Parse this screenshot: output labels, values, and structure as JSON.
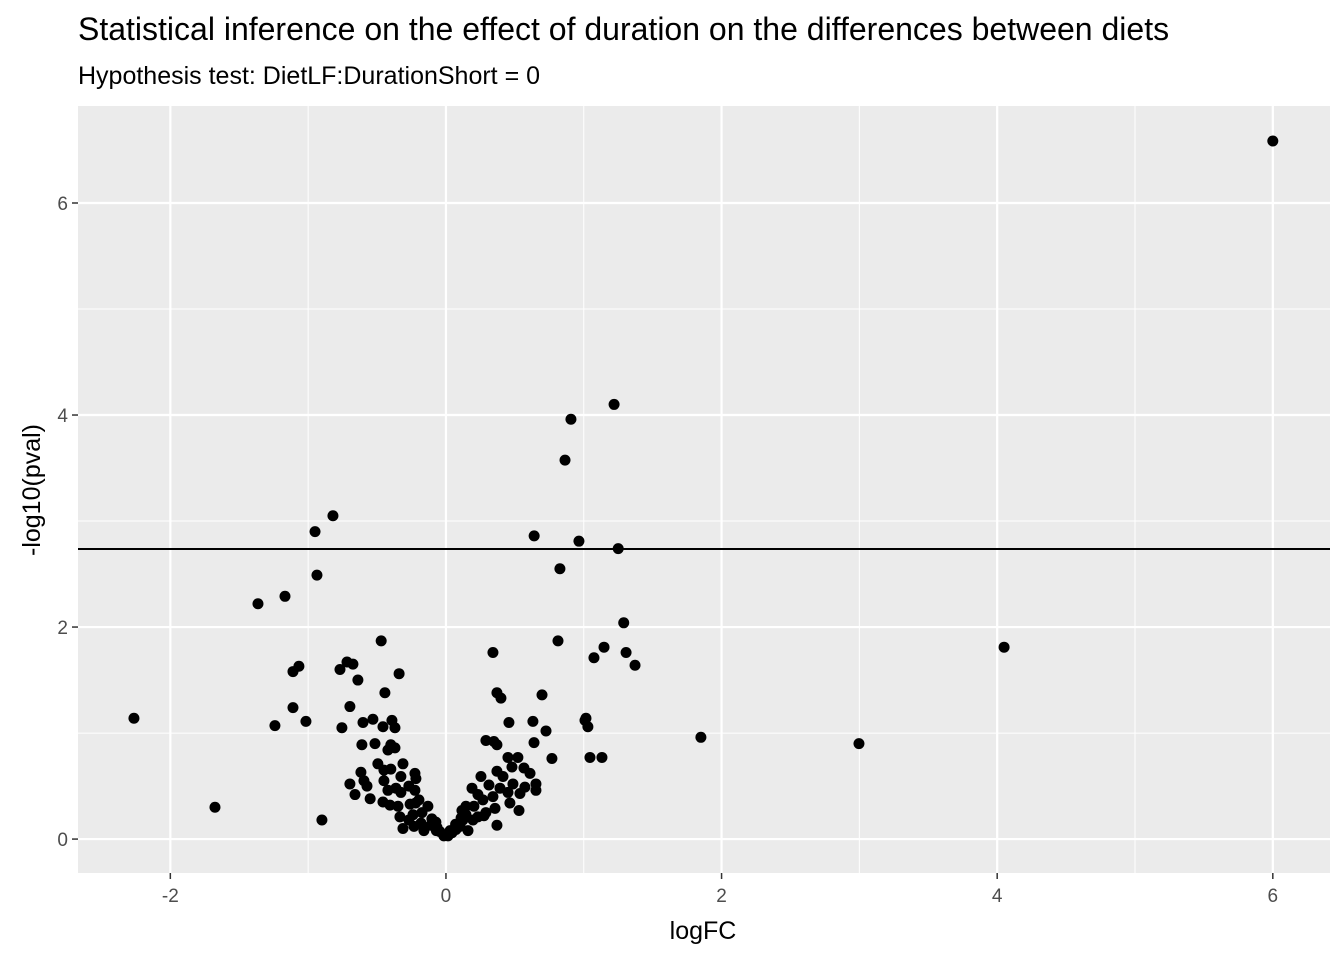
{
  "chart_data": {
    "type": "scatter",
    "title": "Statistical inference on the effect of duration on the differences between diets",
    "subtitle": "Hypothesis test: DietLF:DurationShort = 0",
    "x_label": "logFC",
    "y_label": "-log10(pval)",
    "color": "#000000",
    "hline": 2.736,
    "xlim": [
      -2.67,
      6.415
    ],
    "ylim": [
      -0.32,
      6.915
    ],
    "xticks": [
      -2,
      0,
      2,
      4,
      6
    ],
    "yticks": [
      0,
      2,
      4,
      6
    ],
    "grid": true,
    "x": [
      6.0,
      1.22,
      0.907,
      0.864,
      -0.82,
      -0.95,
      0.64,
      0.965,
      1.25,
      0.827,
      -0.936,
      -1.168,
      -1.364,
      1.29,
      4.05,
      0.813,
      -0.47,
      1.147,
      1.307,
      0.341,
      1.074,
      1.372,
      -0.718,
      -0.675,
      -1.067,
      -0.769,
      -1.11,
      -0.34,
      -0.639,
      -0.443,
      0.37,
      0.697,
      0.399,
      -1.11,
      -0.697,
      -2.264,
      -1.016,
      -1.241,
      1.009,
      1.016,
      1.03,
      0.457,
      0.631,
      -0.53,
      -0.602,
      -0.392,
      -0.457,
      -0.37,
      -0.755,
      0.726,
      0.29,
      0.348,
      1.85,
      2.997,
      -0.61,
      -0.515,
      -0.4,
      0.37,
      0.639,
      -0.421,
      -0.37,
      0.45,
      0.522,
      0.769,
      1.045,
      1.132,
      -0.312,
      -0.494,
      -0.45,
      -0.4,
      -0.617,
      0.479,
      0.566,
      0.37,
      -0.225,
      -0.327,
      0.254,
      0.61,
      0.414,
      -0.218,
      -0.45,
      -0.595,
      -0.697,
      -0.573,
      0.312,
      0.653,
      0.486,
      0.573,
      0.653,
      0.189,
      0.392,
      -0.269,
      -0.363,
      -0.421,
      -0.327,
      -0.225,
      -0.66,
      0.537,
      0.45,
      0.232,
      0.341,
      -0.55,
      -0.457,
      -0.406,
      -0.348,
      -0.26,
      -0.196,
      0.464,
      0.53,
      0.356,
      0.268,
      0.203,
      0.145,
      0.116,
      0.29,
      -1.676,
      -0.9,
      -0.334,
      -0.269,
      -0.239,
      -0.174,
      -0.131,
      -0.181,
      -0.109,
      -0.065,
      -0.312,
      -0.232,
      -0.16,
      -0.073,
      -0.102,
      -0.044,
      -0.015,
      0.015,
      0.044,
      0.073,
      0.102,
      0.123,
      0.145,
      0.16,
      0.196,
      0.232,
      0.276,
      0.37,
      0.03,
      -0.07,
      0.07,
      0.11,
      -0.22
    ],
    "values": [
      6.585,
      4.1,
      3.96,
      3.575,
      3.05,
      2.9,
      2.86,
      2.81,
      2.74,
      2.55,
      2.49,
      2.29,
      2.22,
      2.04,
      1.81,
      1.87,
      1.87,
      1.81,
      1.76,
      1.76,
      1.71,
      1.64,
      1.67,
      1.65,
      1.63,
      1.6,
      1.58,
      1.56,
      1.5,
      1.38,
      1.38,
      1.36,
      1.33,
      1.24,
      1.25,
      1.14,
      1.11,
      1.07,
      1.12,
      1.14,
      1.06,
      1.1,
      1.11,
      1.13,
      1.1,
      1.12,
      1.06,
      1.05,
      1.05,
      1.02,
      0.93,
      0.92,
      0.96,
      0.9,
      0.89,
      0.9,
      0.89,
      0.89,
      0.91,
      0.84,
      0.86,
      0.77,
      0.77,
      0.76,
      0.77,
      0.77,
      0.71,
      0.71,
      0.65,
      0.66,
      0.63,
      0.68,
      0.67,
      0.64,
      0.62,
      0.59,
      0.59,
      0.62,
      0.59,
      0.57,
      0.55,
      0.55,
      0.52,
      0.5,
      0.51,
      0.52,
      0.52,
      0.49,
      0.46,
      0.48,
      0.48,
      0.5,
      0.48,
      0.46,
      0.44,
      0.46,
      0.42,
      0.43,
      0.44,
      0.42,
      0.4,
      0.38,
      0.35,
      0.32,
      0.31,
      0.33,
      0.37,
      0.34,
      0.27,
      0.29,
      0.37,
      0.31,
      0.31,
      0.27,
      0.25,
      0.3,
      0.18,
      0.21,
      0.18,
      0.23,
      0.25,
      0.31,
      0.15,
      0.13,
      0.11,
      0.1,
      0.12,
      0.08,
      0.16,
      0.19,
      0.07,
      0.03,
      0.03,
      0.06,
      0.09,
      0.12,
      0.18,
      0.23,
      0.08,
      0.18,
      0.21,
      0.22,
      0.13,
      0.08,
      0.08,
      0.14,
      0.2,
      0.34
    ]
  }
}
